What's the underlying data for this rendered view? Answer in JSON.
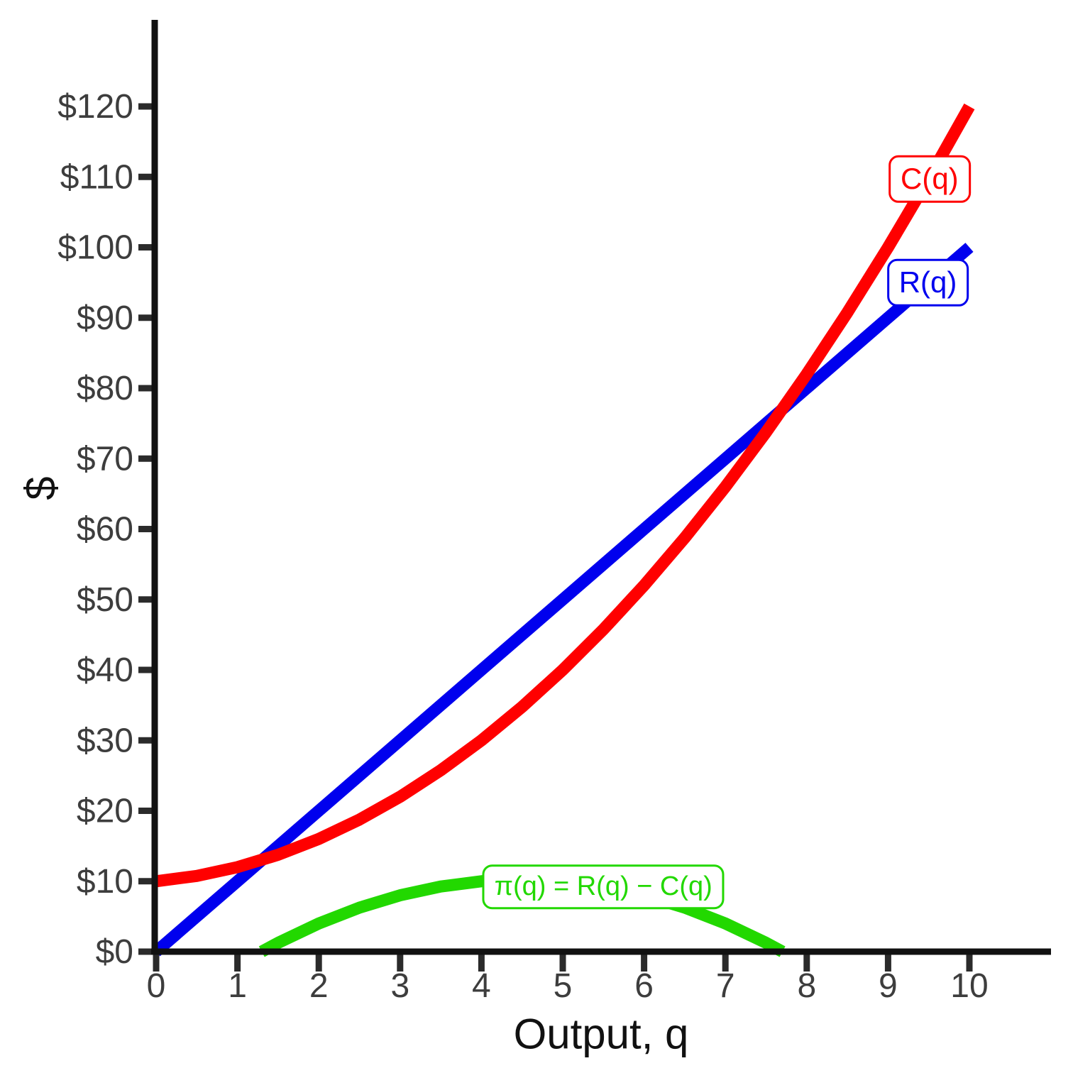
{
  "chart_data": {
    "type": "line",
    "title": "",
    "xlabel": "Output, q",
    "ylabel": "$",
    "xlim": [
      0,
      10
    ],
    "ylim": [
      0,
      120
    ],
    "grid": false,
    "legend_position": "inline-labels",
    "x_ticks": {
      "values": [
        0,
        1,
        2,
        3,
        4,
        5,
        6,
        7,
        8,
        9,
        10
      ],
      "labels": [
        "0",
        "1",
        "2",
        "3",
        "4",
        "5",
        "6",
        "7",
        "8",
        "9",
        "10"
      ]
    },
    "y_ticks": {
      "values": [
        0,
        10,
        20,
        30,
        40,
        50,
        60,
        70,
        80,
        90,
        100,
        110,
        120
      ],
      "labels": [
        "$0",
        "$10",
        "$20",
        "$30",
        "$40",
        "$50",
        "$60",
        "$70",
        "$80",
        "$90",
        "$100",
        "$110",
        "$120"
      ]
    },
    "series": [
      {
        "id": "profit",
        "label": "π(q) = R(q) − C(q)",
        "description": "Profit curve, zero at q≈1.3 and q≈7.7, peak 10.25 at q=4.5",
        "color": "#22d800",
        "x": [
          1.2984,
          1.5,
          2,
          2.5,
          3,
          3.5,
          4,
          4.5,
          5,
          5.5,
          6,
          6.5,
          7,
          7.5,
          7.7016
        ],
        "y": [
          0,
          1.25,
          4,
          6.25,
          8,
          9.25,
          10,
          10.25,
          10,
          9.25,
          8,
          6.25,
          4,
          1.25,
          0
        ],
        "label_pos": {
          "q": 5.5,
          "v": 9.2
        }
      },
      {
        "id": "revenue",
        "label": "R(q)",
        "description": "Revenue line R(q) = 10q",
        "color": "#0000ee",
        "x": [
          0,
          1,
          2,
          3,
          4,
          5,
          6,
          7,
          8,
          9,
          10
        ],
        "y": [
          0,
          10,
          20,
          30,
          40,
          50,
          60,
          70,
          80,
          90,
          100
        ],
        "label_pos": {
          "q": 9.49,
          "v": 95.0
        }
      },
      {
        "id": "cost",
        "label": "C(q)",
        "description": "Total cost curve C(q) = q² + q + 10",
        "color": "#ff0000",
        "x": [
          0,
          0.5,
          1,
          1.5,
          2,
          2.5,
          3,
          3.5,
          4,
          4.5,
          5,
          5.5,
          6,
          6.5,
          7,
          7.5,
          8,
          8.5,
          9,
          9.5,
          10
        ],
        "y": [
          10,
          10.75,
          12,
          13.75,
          16,
          18.75,
          22,
          25.75,
          30,
          34.75,
          40,
          45.75,
          52,
          58.75,
          66,
          73.75,
          82,
          90.75,
          100,
          109.75,
          120
        ],
        "label_pos": {
          "q": 9.51,
          "v": 109.7
        }
      }
    ],
    "intersections": [
      {
        "q": 1.3,
        "v": 13,
        "meaning": "break-even (R crosses C)"
      },
      {
        "q": 7.7,
        "v": 77,
        "meaning": "break-even (R crosses C)"
      }
    ],
    "style": {
      "axis_color": "#111111",
      "tick_color": "#2b2b2b",
      "tick_label_color": "#3d3d3d",
      "background": "#ffffff"
    }
  }
}
